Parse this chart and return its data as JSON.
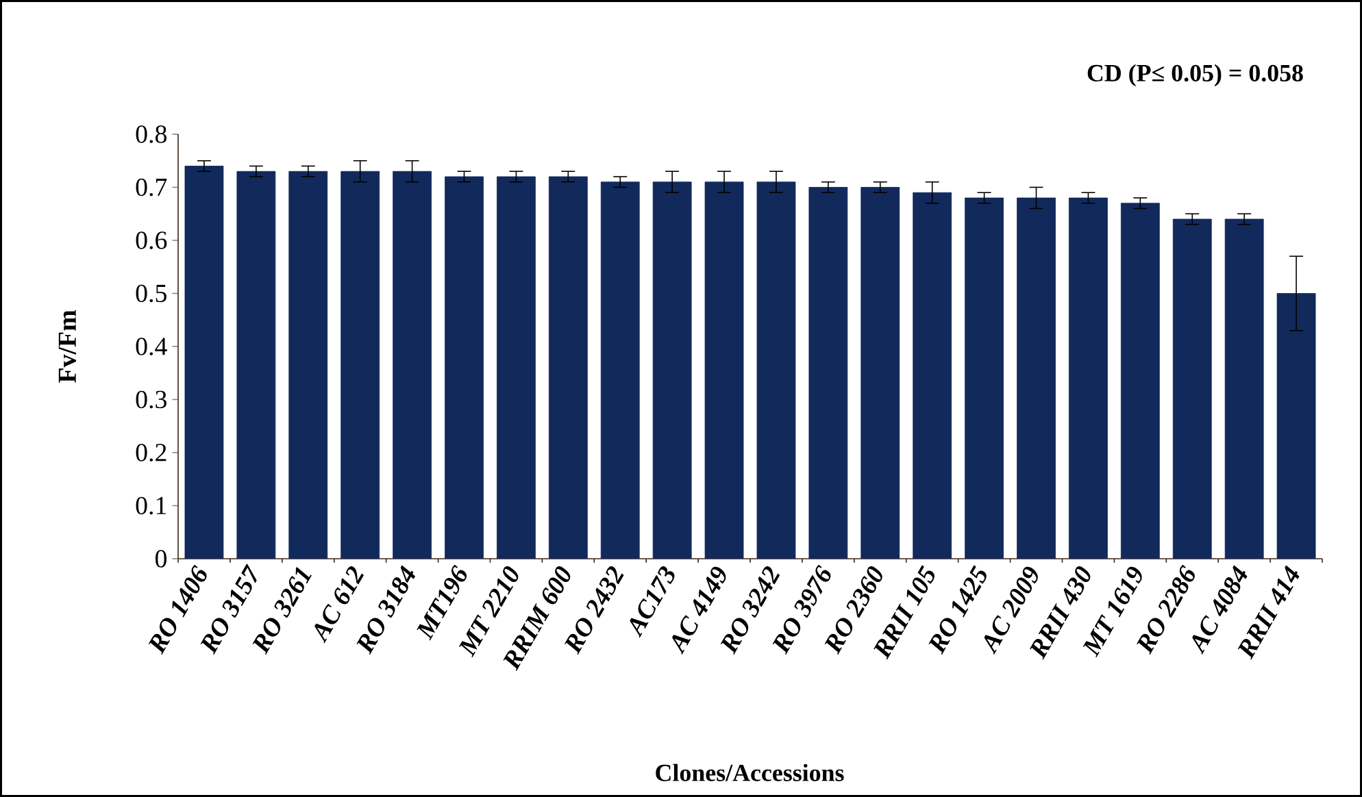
{
  "chart_data": {
    "type": "bar",
    "xlabel": "Clones/Accessions",
    "ylabel": "Fv/Fm",
    "annotations": [
      "CD (P≤ 0.05) = 0.058"
    ],
    "categories": [
      "RO 1406",
      "RO 3157",
      "RO 3261",
      "AC 612",
      "RO 3184",
      "MT196",
      "MT 2210",
      "RRIM 600",
      "RO 2432",
      "AC173",
      "AC 4149",
      "RO 3242",
      "RO 3976",
      "RO 2360",
      "RRII 105",
      "RO 1425",
      "AC 2009",
      "RRII 430",
      "MT 1619",
      "RO 2286",
      "AC 4084",
      "RRII 414"
    ],
    "values": [
      0.74,
      0.73,
      0.73,
      0.73,
      0.73,
      0.72,
      0.72,
      0.72,
      0.71,
      0.71,
      0.71,
      0.71,
      0.7,
      0.7,
      0.69,
      0.68,
      0.68,
      0.68,
      0.67,
      0.64,
      0.64,
      0.5
    ],
    "errors": [
      0.01,
      0.01,
      0.01,
      0.02,
      0.02,
      0.01,
      0.01,
      0.01,
      0.01,
      0.02,
      0.02,
      0.02,
      0.01,
      0.01,
      0.02,
      0.01,
      0.02,
      0.01,
      0.01,
      0.01,
      0.01,
      0.07
    ],
    "color": "#12295c",
    "ylim": [
      0,
      0.8
    ],
    "yticks": [
      0,
      0.1,
      0.2,
      0.3,
      0.4,
      0.5,
      0.6,
      0.7,
      0.8
    ],
    "grid": false
  }
}
